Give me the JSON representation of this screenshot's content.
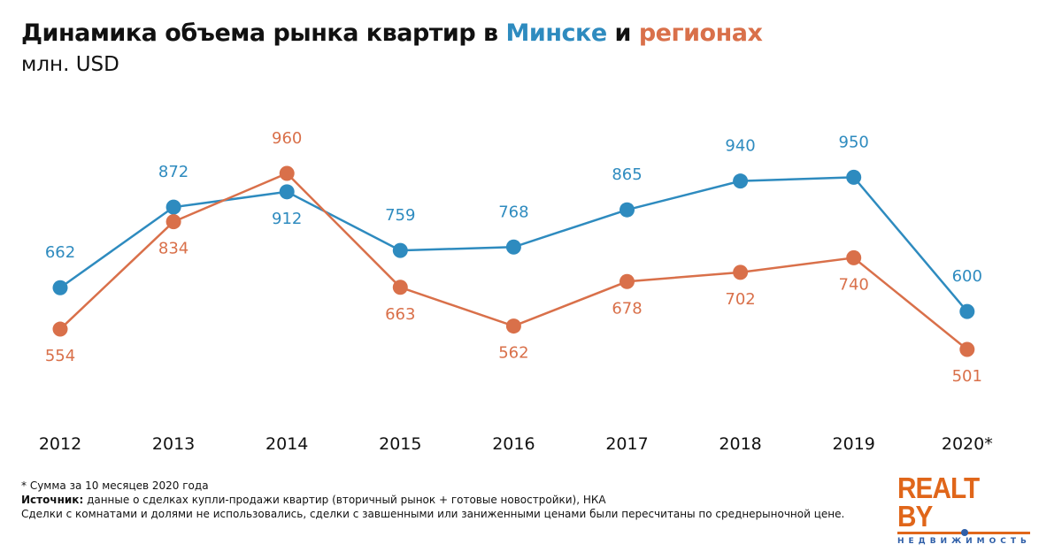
{
  "title": {
    "prefix": "Динамика объема рынка квартир в ",
    "minsk": "Минске",
    "and": " и ",
    "regions": "регионах"
  },
  "subtitle": "млн. USD",
  "chart_data": {
    "type": "line",
    "title": "Динамика объема рынка квартир в Минске и регионах",
    "ylabel": "млн. USD",
    "categories": [
      "2012",
      "2013",
      "2014",
      "2015",
      "2016",
      "2017",
      "2018",
      "2019",
      "2020*"
    ],
    "series": [
      {
        "name": "Минске",
        "color": "#2e8bbf",
        "values": [
          662,
          872,
          912,
          759,
          768,
          865,
          940,
          950,
          600
        ]
      },
      {
        "name": "регионах",
        "color": "#d9704a",
        "values": [
          554,
          834,
          960,
          663,
          562,
          678,
          702,
          740,
          501
        ]
      }
    ],
    "grid": false
  },
  "notes": {
    "line1": "* Сумма за 10 месяцев 2020 года",
    "source_label": "Источник:",
    "source_text": " данные о сделках купли-продажи квартир (вторичный рынок + готовые новостройки), НКА",
    "line3": "Сделки с комнатами и долями не использовались, сделки с завшенными или заниженными ценами были пересчитаны по среднерыночной цене."
  },
  "logo": {
    "main": "REALT BY",
    "sub": "НЕДВИЖИМОСТЬ"
  }
}
